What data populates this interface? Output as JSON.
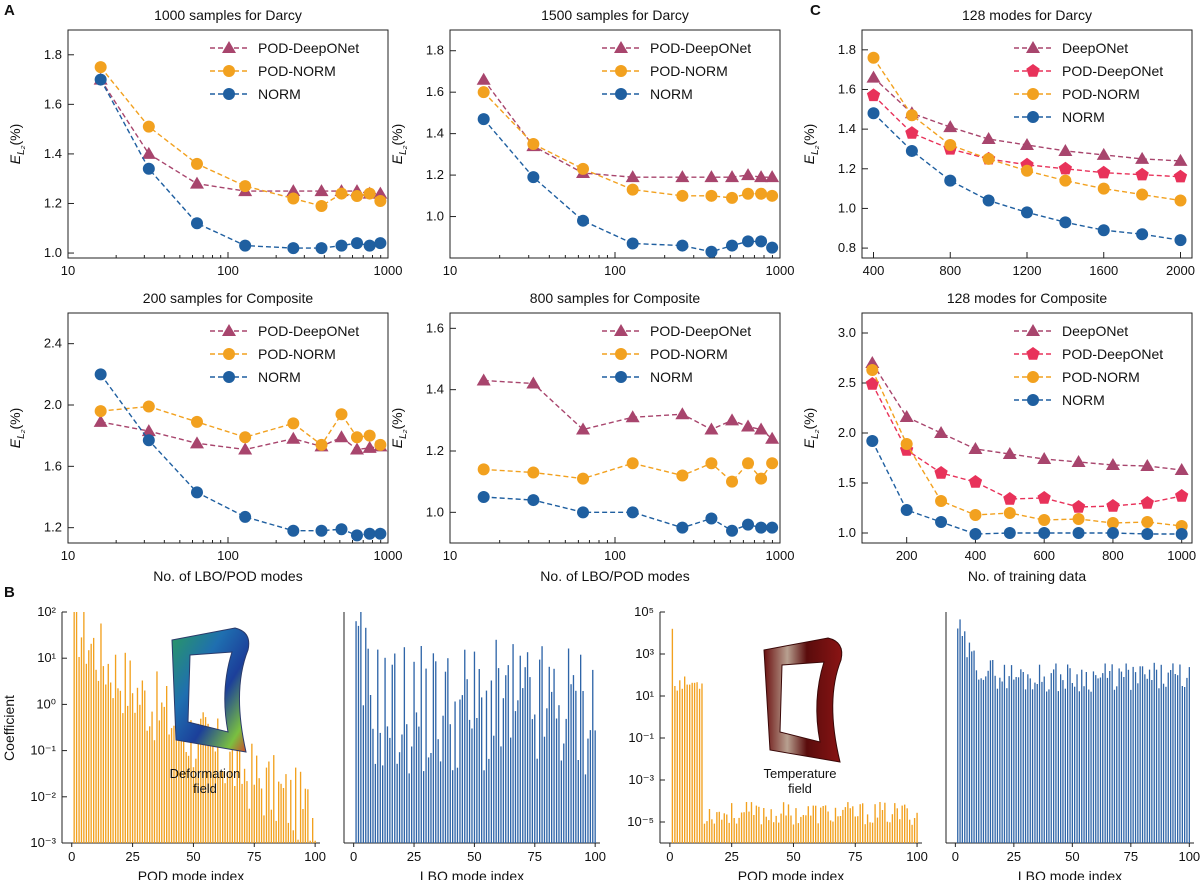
{
  "panel_letters": {
    "a": "A",
    "b": "B",
    "c": "C"
  },
  "colors": {
    "deeponet": "#a8456d",
    "pod_deeponet": "#e8325a",
    "pod_norm": "#f2a11f",
    "norm": "#1f5fa0",
    "pod_bar": "#f2a11f",
    "lbo_bar": "#2f65a8"
  },
  "y_err_label_main": "E",
  "y_err_label_sub": "L₂",
  "y_err_label_unit": "(%)",
  "inset_labels": {
    "deformation": [
      "Deformation",
      "field"
    ],
    "temperature": [
      "Temperature",
      "field"
    ]
  },
  "chart_data": [
    {
      "id": "a1",
      "type": "line",
      "title": "1000 samples for Darcy",
      "xscale": "log",
      "xlim": [
        10,
        1000
      ],
      "ylim": [
        0.98,
        1.9
      ],
      "xticks": [
        10,
        100,
        1000
      ],
      "xtick_labels": [
        "10",
        "100",
        "1000"
      ],
      "yticks": [
        1.0,
        1.2,
        1.4,
        1.6,
        1.8
      ],
      "ytick_labels": [
        "1.0",
        "1.2",
        "1.4",
        "1.6",
        "1.8"
      ],
      "xlabel": "",
      "legend_position": "top-right",
      "x": [
        16,
        32,
        64,
        128,
        256,
        384,
        512,
        640,
        768,
        896
      ],
      "series": [
        {
          "name": "POD-DeepONet",
          "key": "pod_deeponet_a",
          "marker": "triangle",
          "values": [
            1.7,
            1.4,
            1.28,
            1.25,
            1.25,
            1.25,
            1.25,
            1.25,
            1.24,
            1.24
          ]
        },
        {
          "name": "POD-NORM",
          "key": "pod_norm",
          "marker": "circle",
          "values": [
            1.75,
            1.51,
            1.36,
            1.27,
            1.22,
            1.19,
            1.24,
            1.23,
            1.24,
            1.21
          ]
        },
        {
          "name": "NORM",
          "key": "norm",
          "marker": "circle",
          "values": [
            1.7,
            1.34,
            1.12,
            1.03,
            1.02,
            1.02,
            1.03,
            1.04,
            1.03,
            1.04
          ]
        }
      ]
    },
    {
      "id": "a2",
      "type": "line",
      "title": "1500 samples for Darcy",
      "xscale": "log",
      "xlim": [
        10,
        1000
      ],
      "ylim": [
        0.8,
        1.9
      ],
      "xticks": [
        10,
        100,
        1000
      ],
      "xtick_labels": [
        "10",
        "100",
        "1000"
      ],
      "yticks": [
        1.0,
        1.2,
        1.4,
        1.6,
        1.8
      ],
      "ytick_labels": [
        "1.0",
        "1.2",
        "1.4",
        "1.6",
        "1.8"
      ],
      "xlabel": "",
      "legend_position": "top-right",
      "x": [
        16,
        32,
        64,
        128,
        256,
        384,
        512,
        640,
        768,
        896
      ],
      "series": [
        {
          "name": "POD-DeepONet",
          "key": "pod_deeponet_a",
          "marker": "triangle",
          "values": [
            1.66,
            1.34,
            1.21,
            1.19,
            1.19,
            1.19,
            1.19,
            1.2,
            1.19,
            1.19
          ]
        },
        {
          "name": "POD-NORM",
          "key": "pod_norm",
          "marker": "circle",
          "values": [
            1.6,
            1.35,
            1.23,
            1.13,
            1.1,
            1.1,
            1.09,
            1.11,
            1.11,
            1.1
          ]
        },
        {
          "name": "NORM",
          "key": "norm",
          "marker": "circle",
          "values": [
            1.47,
            1.19,
            0.98,
            0.87,
            0.86,
            0.83,
            0.86,
            0.88,
            0.88,
            0.85
          ]
        }
      ]
    },
    {
      "id": "a3",
      "type": "line",
      "title": "200 samples for Composite",
      "xscale": "log",
      "xlim": [
        10,
        1000
      ],
      "ylim": [
        1.1,
        2.6
      ],
      "xticks": [
        10,
        100,
        1000
      ],
      "xtick_labels": [
        "10",
        "100",
        "1000"
      ],
      "yticks": [
        1.2,
        1.6,
        2.0,
        2.4
      ],
      "ytick_labels": [
        "1.2",
        "1.6",
        "2.0",
        "2.4"
      ],
      "xlabel": "No. of LBO/POD modes",
      "legend_position": "top-right",
      "x": [
        16,
        32,
        64,
        128,
        256,
        384,
        512,
        640,
        768,
        896
      ],
      "series": [
        {
          "name": "POD-DeepONet",
          "key": "pod_deeponet_a",
          "marker": "triangle",
          "values": [
            1.89,
            1.83,
            1.75,
            1.71,
            1.78,
            1.73,
            1.79,
            1.71,
            1.72,
            1.73
          ]
        },
        {
          "name": "POD-NORM",
          "key": "pod_norm",
          "marker": "circle",
          "values": [
            1.96,
            1.99,
            1.89,
            1.79,
            1.88,
            1.74,
            1.94,
            1.79,
            1.8,
            1.74
          ]
        },
        {
          "name": "NORM",
          "key": "norm",
          "marker": "circle",
          "values": [
            2.2,
            1.77,
            1.43,
            1.27,
            1.18,
            1.18,
            1.19,
            1.15,
            1.16,
            1.16
          ]
        }
      ]
    },
    {
      "id": "a4",
      "type": "line",
      "title": "800 samples for Composite",
      "xscale": "log",
      "xlim": [
        10,
        1000
      ],
      "ylim": [
        0.9,
        1.65
      ],
      "xticks": [
        10,
        100,
        1000
      ],
      "xtick_labels": [
        "10",
        "100",
        "1000"
      ],
      "yticks": [
        1.0,
        1.2,
        1.4,
        1.6
      ],
      "ytick_labels": [
        "1.0",
        "1.2",
        "1.4",
        "1.6"
      ],
      "xlabel": "No. of LBO/POD modes",
      "legend_position": "top-right",
      "x": [
        16,
        32,
        64,
        128,
        256,
        384,
        512,
        640,
        768,
        896
      ],
      "series": [
        {
          "name": "POD-DeepONet",
          "key": "pod_deeponet_a",
          "marker": "triangle",
          "values": [
            1.43,
            1.42,
            1.27,
            1.31,
            1.32,
            1.27,
            1.3,
            1.28,
            1.27,
            1.24
          ]
        },
        {
          "name": "POD-NORM",
          "key": "pod_norm",
          "marker": "circle",
          "values": [
            1.14,
            1.13,
            1.11,
            1.16,
            1.12,
            1.16,
            1.1,
            1.16,
            1.11,
            1.16
          ]
        },
        {
          "name": "NORM",
          "key": "norm",
          "marker": "circle",
          "values": [
            1.05,
            1.04,
            1.0,
            1.0,
            0.95,
            0.98,
            0.94,
            0.96,
            0.95,
            0.95
          ]
        }
      ]
    },
    {
      "id": "c1",
      "type": "line",
      "title": "128 modes for Darcy",
      "xscale": "linear",
      "xlim": [
        340,
        2060
      ],
      "ylim": [
        0.75,
        1.9
      ],
      "xticks": [
        400,
        800,
        1200,
        1600,
        2000
      ],
      "xtick_labels": [
        "400",
        "800",
        "1200",
        "1600",
        "2000"
      ],
      "yticks": [
        0.8,
        1.0,
        1.2,
        1.4,
        1.6,
        1.8
      ],
      "ytick_labels": [
        "0.8",
        "1.0",
        "1.2",
        "1.4",
        "1.6",
        "1.8"
      ],
      "xlabel": "",
      "legend_position": "top-right",
      "x": [
        400,
        600,
        800,
        1000,
        1200,
        1400,
        1600,
        1800,
        2000
      ],
      "series": [
        {
          "name": "DeepONet",
          "key": "deeponet",
          "marker": "triangle",
          "values": [
            1.66,
            1.48,
            1.41,
            1.35,
            1.32,
            1.29,
            1.27,
            1.25,
            1.24
          ]
        },
        {
          "name": "POD-DeepONet",
          "key": "pod_deeponet",
          "marker": "pentagon",
          "values": [
            1.57,
            1.38,
            1.3,
            1.25,
            1.22,
            1.2,
            1.18,
            1.17,
            1.16
          ]
        },
        {
          "name": "POD-NORM",
          "key": "pod_norm",
          "marker": "circle",
          "values": [
            1.76,
            1.47,
            1.32,
            1.25,
            1.19,
            1.14,
            1.1,
            1.07,
            1.04
          ]
        },
        {
          "name": "NORM",
          "key": "norm",
          "marker": "circle",
          "values": [
            1.48,
            1.29,
            1.14,
            1.04,
            0.98,
            0.93,
            0.89,
            0.87,
            0.84
          ]
        }
      ]
    },
    {
      "id": "c2",
      "type": "line",
      "title": "128 modes for Composite",
      "xscale": "linear",
      "xlim": [
        70,
        1030
      ],
      "ylim": [
        0.9,
        3.2
      ],
      "xticks": [
        200,
        400,
        600,
        800,
        1000
      ],
      "xtick_labels": [
        "200",
        "400",
        "600",
        "800",
        "1000"
      ],
      "yticks": [
        1.0,
        1.5,
        2.0,
        2.5,
        3.0
      ],
      "ytick_labels": [
        "1.0",
        "1.5",
        "2.0",
        "2.5",
        "3.0"
      ],
      "xlabel": "No. of training data",
      "legend_position": "top-right",
      "x": [
        100,
        200,
        300,
        400,
        500,
        600,
        700,
        800,
        900,
        1000
      ],
      "series": [
        {
          "name": "DeepONet",
          "key": "deeponet",
          "marker": "triangle",
          "values": [
            2.7,
            2.16,
            2.0,
            1.84,
            1.79,
            1.74,
            1.71,
            1.68,
            1.67,
            1.63
          ]
        },
        {
          "name": "POD-DeepONet",
          "key": "pod_deeponet",
          "marker": "pentagon",
          "values": [
            2.49,
            1.83,
            1.6,
            1.51,
            1.34,
            1.35,
            1.26,
            1.27,
            1.3,
            1.37
          ]
        },
        {
          "name": "POD-NORM",
          "key": "pod_norm",
          "marker": "circle",
          "values": [
            2.63,
            1.89,
            1.32,
            1.18,
            1.2,
            1.13,
            1.14,
            1.1,
            1.11,
            1.07
          ]
        },
        {
          "name": "NORM",
          "key": "norm",
          "marker": "circle",
          "values": [
            1.92,
            1.23,
            1.11,
            0.99,
            1.0,
            1.0,
            1.0,
            1.0,
            0.99,
            0.99
          ]
        }
      ]
    },
    {
      "id": "b1",
      "type": "bar",
      "title": "",
      "yscale": "log",
      "ylabel": "Coefficient",
      "ylim_exp": [
        -3,
        2
      ],
      "ytick_labels": [
        "10⁻³",
        "10⁻²",
        "10⁻¹",
        "10⁰",
        "10¹",
        "10²"
      ],
      "xticks": [
        0,
        25,
        50,
        75,
        100
      ],
      "xtick_labels": [
        "0",
        "25",
        "50",
        "75",
        "100"
      ],
      "pod_xlabel": "POD mode index",
      "lbo_xlabel": "LBO mode index",
      "pod_start_log": 2.0,
      "pod_end_log": -2.4,
      "pod_spread": 0.8,
      "pod_count": 100,
      "lbo_start_log": 2.0,
      "lbo_level_log": 0.2,
      "lbo_spread": 1.5,
      "lbo_count": 100,
      "note": "Per-mode coefficients (100 modes each) estimated from the bar heights; POD decays from about 1e2 to 1e-3, LBO stays roughly between 1e-2 and 1e2."
    },
    {
      "id": "b2",
      "type": "bar",
      "title": "",
      "yscale": "log",
      "ylabel": "",
      "ylim_exp": [
        -6,
        5
      ],
      "ytick_labels": [
        "10⁻⁵",
        "10⁻³",
        "10⁻¹",
        "10¹",
        "10³",
        "10⁵"
      ],
      "ytick_exps": [
        -5,
        -3,
        -1,
        1,
        3,
        5
      ],
      "xticks": [
        0,
        25,
        50,
        75,
        100
      ],
      "xtick_labels": [
        "0",
        "25",
        "50",
        "75",
        "100"
      ],
      "pod_xlabel": "POD mode index",
      "lbo_xlabel": "LBO mode index",
      "pod_high_count": 13,
      "pod_high_log": [
        4.2,
        1.6
      ],
      "pod_low_log": -4.7,
      "pod_spread": 0.55,
      "pod_count": 100,
      "lbo_start_log": 4.4,
      "lbo_level_log": 1.9,
      "lbo_spread": 0.7,
      "lbo_count": 100,
      "note": "POD: first ~13 modes near 1e2 (mode 1 ~ 1e4), remaining near 1e-5; LBO: ~1e4 decaying to ~1e2."
    }
  ]
}
